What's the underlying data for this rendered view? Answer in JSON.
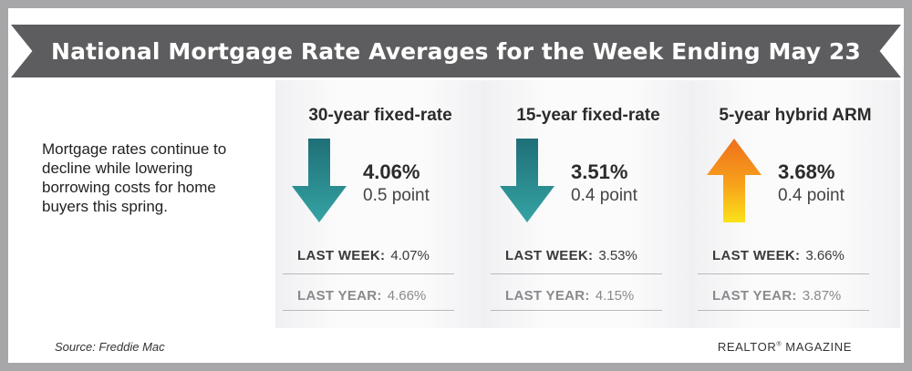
{
  "title": "National Mortgage Rate Averages for the Week Ending May 23",
  "intro": "Mortgage rates continue to decline while lowering borrowing costs for home buyers this spring.",
  "labels": {
    "last_week": "LAST WEEK:",
    "last_year": "LAST YEAR:"
  },
  "cards": [
    {
      "name": "30-year fixed-rate",
      "rate": "4.06%",
      "change": "0.5 point",
      "direction": "down",
      "last_week": "4.07%",
      "last_year": "4.66%"
    },
    {
      "name": "15-year fixed-rate",
      "rate": "3.51%",
      "change": "0.4 point",
      "direction": "down",
      "last_week": "3.53%",
      "last_year": "4.15%"
    },
    {
      "name": "5-year hybrid ARM",
      "rate": "3.68%",
      "change": "0.4 point",
      "direction": "up",
      "last_week": "3.66%",
      "last_year": "3.87%"
    }
  ],
  "footer": {
    "source": "Source: Freddie Mac",
    "publisher": "REALTOR",
    "publisher_mark": "®",
    "publisher_suffix": " MAGAZINE"
  },
  "colors": {
    "banner": "#5d5d60",
    "frame": "#a7a7a9",
    "down_arrow": "#2a8d8f",
    "up_arrow": "#f7a21b"
  },
  "icons": {
    "down": "arrow-down-icon",
    "up": "arrow-up-icon"
  }
}
